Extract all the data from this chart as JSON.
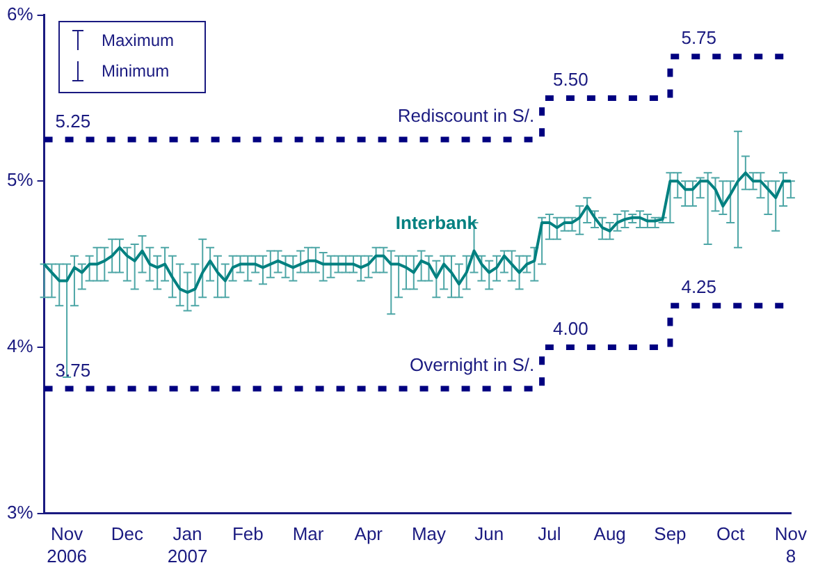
{
  "chart_data": {
    "type": "line",
    "categories": [
      null,
      null,
      null,
      "Nov\n2006",
      null,
      null,
      null,
      null,
      null,
      null,
      null,
      "Dec",
      null,
      null,
      null,
      null,
      null,
      null,
      null,
      "Jan\n2007",
      null,
      null,
      null,
      null,
      null,
      null,
      null,
      "Feb",
      null,
      null,
      null,
      null,
      null,
      null,
      null,
      "Mar",
      null,
      null,
      null,
      null,
      null,
      null,
      null,
      "Apr",
      null,
      null,
      null,
      null,
      null,
      null,
      null,
      "May",
      null,
      null,
      null,
      null,
      null,
      null,
      null,
      "Jun",
      null,
      null,
      null,
      null,
      null,
      null,
      null,
      "Jul",
      null,
      null,
      null,
      null,
      null,
      null,
      null,
      "Aug",
      null,
      null,
      null,
      null,
      null,
      null,
      null,
      "Sep",
      null,
      null,
      null,
      null,
      null,
      null,
      null,
      "Oct",
      null,
      null,
      null,
      null,
      null,
      null,
      null,
      "Nov\n8"
    ],
    "ylim": [
      3,
      6
    ],
    "yticks": [
      {
        "value": 3,
        "label": "3%"
      },
      {
        "value": 4,
        "label": "4%"
      },
      {
        "value": 5,
        "label": "5%"
      },
      {
        "value": 6,
        "label": "6%"
      }
    ],
    "grid": false,
    "legend": false,
    "marker": "none",
    "annotations": [
      "Maximum",
      "Minimum"
    ],
    "series": [
      {
        "name": "Rediscount in S/.",
        "type": "step",
        "line_style": "dotted",
        "color": "#000080",
        "values": [
          5.25,
          5.25,
          5.25,
          5.25,
          5.25,
          5.25,
          5.25,
          5.25,
          5.25,
          5.25,
          5.25,
          5.25,
          5.25,
          5.25,
          5.25,
          5.25,
          5.25,
          5.25,
          5.25,
          5.25,
          5.25,
          5.25,
          5.25,
          5.25,
          5.25,
          5.25,
          5.25,
          5.25,
          5.25,
          5.25,
          5.25,
          5.25,
          5.25,
          5.25,
          5.25,
          5.25,
          5.25,
          5.25,
          5.25,
          5.25,
          5.25,
          5.25,
          5.25,
          5.25,
          5.25,
          5.25,
          5.25,
          5.25,
          5.25,
          5.25,
          5.25,
          5.25,
          5.25,
          5.25,
          5.25,
          5.25,
          5.25,
          5.25,
          5.25,
          5.25,
          5.25,
          5.25,
          5.25,
          5.25,
          5.25,
          5.25,
          5.5,
          5.5,
          5.5,
          5.5,
          5.5,
          5.5,
          5.5,
          5.5,
          5.5,
          5.5,
          5.5,
          5.5,
          5.5,
          5.5,
          5.5,
          5.5,
          5.5,
          5.75,
          5.75,
          5.75,
          5.75,
          5.75,
          5.75,
          5.75,
          5.75,
          5.75,
          5.75,
          5.75,
          5.75,
          5.75,
          5.75,
          5.75,
          5.75,
          5.75
        ],
        "value_labels": [
          "5.25",
          null,
          null,
          null,
          null,
          null,
          null,
          null,
          null,
          null,
          null,
          null,
          null,
          null,
          null,
          null,
          null,
          null,
          null,
          null,
          null,
          null,
          null,
          null,
          null,
          null,
          null,
          null,
          null,
          null,
          null,
          null,
          null,
          null,
          null,
          null,
          null,
          null,
          null,
          null,
          null,
          null,
          null,
          null,
          null,
          null,
          null,
          null,
          null,
          null,
          null,
          null,
          null,
          null,
          null,
          null,
          null,
          null,
          null,
          null,
          null,
          null,
          null,
          null,
          null,
          null,
          "5.50",
          null,
          null,
          null,
          null,
          null,
          null,
          null,
          null,
          null,
          null,
          null,
          null,
          null,
          null,
          null,
          null,
          "5.75",
          null,
          null,
          null,
          null,
          null,
          null,
          null,
          null,
          null,
          null,
          null,
          null,
          null,
          null,
          null,
          null
        ]
      },
      {
        "name": "Interbank",
        "type": "line",
        "color": "#008080",
        "values": [
          4.5,
          4.45,
          4.4,
          4.4,
          4.48,
          4.45,
          4.5,
          4.5,
          4.52,
          4.55,
          4.6,
          4.55,
          4.52,
          4.58,
          4.5,
          4.48,
          4.5,
          4.42,
          4.35,
          4.33,
          4.35,
          4.45,
          4.52,
          4.45,
          4.4,
          4.48,
          4.5,
          4.5,
          4.5,
          4.48,
          4.5,
          4.52,
          4.5,
          4.48,
          4.5,
          4.52,
          4.52,
          4.5,
          4.5,
          4.5,
          4.5,
          4.5,
          4.48,
          4.5,
          4.55,
          4.55,
          4.5,
          4.5,
          4.48,
          4.45,
          4.52,
          4.5,
          4.42,
          4.5,
          4.45,
          4.38,
          4.45,
          4.58,
          4.5,
          4.45,
          4.48,
          4.55,
          4.5,
          4.45,
          4.5,
          4.52,
          4.75,
          4.75,
          4.72,
          4.75,
          4.75,
          4.78,
          4.85,
          4.78,
          4.72,
          4.7,
          4.75,
          4.77,
          4.78,
          4.78,
          4.76,
          4.76,
          4.77,
          5.0,
          5.0,
          4.95,
          4.95,
          5.0,
          5.0,
          4.95,
          4.85,
          4.92,
          5.0,
          5.05,
          5.0,
          5.0,
          4.95,
          4.9,
          5.0,
          5.0
        ],
        "errors": [
          [
            4.3,
            4.5
          ],
          [
            4.3,
            4.5
          ],
          [
            4.25,
            4.5
          ],
          [
            3.82,
            4.5
          ],
          [
            4.25,
            4.55
          ],
          [
            4.35,
            4.5
          ],
          [
            4.4,
            4.55
          ],
          [
            4.4,
            4.6
          ],
          [
            4.4,
            4.6
          ],
          [
            4.45,
            4.65
          ],
          [
            4.45,
            4.65
          ],
          [
            4.4,
            4.6
          ],
          [
            4.35,
            4.62
          ],
          [
            4.45,
            4.67
          ],
          [
            4.4,
            4.6
          ],
          [
            4.35,
            4.55
          ],
          [
            4.4,
            4.6
          ],
          [
            4.3,
            4.55
          ],
          [
            4.25,
            4.5
          ],
          [
            4.22,
            4.45
          ],
          [
            4.25,
            4.5
          ],
          [
            4.3,
            4.65
          ],
          [
            4.4,
            4.6
          ],
          [
            4.3,
            4.55
          ],
          [
            4.3,
            4.5
          ],
          [
            4.4,
            4.55
          ],
          [
            4.45,
            4.55
          ],
          [
            4.4,
            4.55
          ],
          [
            4.45,
            4.55
          ],
          [
            4.38,
            4.55
          ],
          [
            4.42,
            4.58
          ],
          [
            4.45,
            4.58
          ],
          [
            4.42,
            4.55
          ],
          [
            4.4,
            4.55
          ],
          [
            4.45,
            4.58
          ],
          [
            4.45,
            4.6
          ],
          [
            4.45,
            4.6
          ],
          [
            4.4,
            4.57
          ],
          [
            4.42,
            4.55
          ],
          [
            4.45,
            4.55
          ],
          [
            4.45,
            4.55
          ],
          [
            4.45,
            4.55
          ],
          [
            4.4,
            4.55
          ],
          [
            4.42,
            4.55
          ],
          [
            4.45,
            4.6
          ],
          [
            4.45,
            4.6
          ],
          [
            4.2,
            4.58
          ],
          [
            4.3,
            4.55
          ],
          [
            4.35,
            4.55
          ],
          [
            4.35,
            4.55
          ],
          [
            4.4,
            4.58
          ],
          [
            4.4,
            4.55
          ],
          [
            4.3,
            4.52
          ],
          [
            4.35,
            4.55
          ],
          [
            4.3,
            4.55
          ],
          [
            4.3,
            4.5
          ],
          [
            4.35,
            4.55
          ],
          [
            4.45,
            4.75
          ],
          [
            4.4,
            4.55
          ],
          [
            4.35,
            4.52
          ],
          [
            4.4,
            4.55
          ],
          [
            4.45,
            4.58
          ],
          [
            4.4,
            4.58
          ],
          [
            4.35,
            4.55
          ],
          [
            4.45,
            4.55
          ],
          [
            4.4,
            4.6
          ],
          [
            4.5,
            4.78
          ],
          [
            4.65,
            4.8
          ],
          [
            4.65,
            4.78
          ],
          [
            4.7,
            4.78
          ],
          [
            4.7,
            4.78
          ],
          [
            4.68,
            4.85
          ],
          [
            4.75,
            4.9
          ],
          [
            4.72,
            4.82
          ],
          [
            4.65,
            4.78
          ],
          [
            4.65,
            4.75
          ],
          [
            4.7,
            4.8
          ],
          [
            4.72,
            4.82
          ],
          [
            4.75,
            4.8
          ],
          [
            4.72,
            4.82
          ],
          [
            4.72,
            4.8
          ],
          [
            4.72,
            4.78
          ],
          [
            4.75,
            4.78
          ],
          [
            4.75,
            5.05
          ],
          [
            4.9,
            5.05
          ],
          [
            4.85,
            5.0
          ],
          [
            4.85,
            5.0
          ],
          [
            4.9,
            5.02
          ],
          [
            4.62,
            5.05
          ],
          [
            4.82,
            5.02
          ],
          [
            4.8,
            5.0
          ],
          [
            4.75,
            5.0
          ],
          [
            4.6,
            5.3
          ],
          [
            4.95,
            5.15
          ],
          [
            4.95,
            5.05
          ],
          [
            4.9,
            5.05
          ],
          [
            4.8,
            5.0
          ],
          [
            4.7,
            5.0
          ],
          [
            4.85,
            5.05
          ],
          [
            4.9,
            5.0
          ]
        ]
      },
      {
        "name": "Overnight in S/.",
        "type": "step",
        "line_style": "dotted",
        "color": "#000080",
        "values": [
          3.75,
          3.75,
          3.75,
          3.75,
          3.75,
          3.75,
          3.75,
          3.75,
          3.75,
          3.75,
          3.75,
          3.75,
          3.75,
          3.75,
          3.75,
          3.75,
          3.75,
          3.75,
          3.75,
          3.75,
          3.75,
          3.75,
          3.75,
          3.75,
          3.75,
          3.75,
          3.75,
          3.75,
          3.75,
          3.75,
          3.75,
          3.75,
          3.75,
          3.75,
          3.75,
          3.75,
          3.75,
          3.75,
          3.75,
          3.75,
          3.75,
          3.75,
          3.75,
          3.75,
          3.75,
          3.75,
          3.75,
          3.75,
          3.75,
          3.75,
          3.75,
          3.75,
          3.75,
          3.75,
          3.75,
          3.75,
          3.75,
          3.75,
          3.75,
          3.75,
          3.75,
          3.75,
          3.75,
          3.75,
          3.75,
          3.75,
          4.0,
          4.0,
          4.0,
          4.0,
          4.0,
          4.0,
          4.0,
          4.0,
          4.0,
          4.0,
          4.0,
          4.0,
          4.0,
          4.0,
          4.0,
          4.0,
          4.0,
          4.25,
          4.25,
          4.25,
          4.25,
          4.25,
          4.25,
          4.25,
          4.25,
          4.25,
          4.25,
          4.25,
          4.25,
          4.25,
          4.25,
          4.25,
          4.25,
          4.25
        ],
        "value_labels": [
          "3.75",
          null,
          null,
          null,
          null,
          null,
          null,
          null,
          null,
          null,
          null,
          null,
          null,
          null,
          null,
          null,
          null,
          null,
          null,
          null,
          null,
          null,
          null,
          null,
          null,
          null,
          null,
          null,
          null,
          null,
          null,
          null,
          null,
          null,
          null,
          null,
          null,
          null,
          null,
          null,
          null,
          null,
          null,
          null,
          null,
          null,
          null,
          null,
          null,
          null,
          null,
          null,
          null,
          null,
          null,
          null,
          null,
          null,
          null,
          null,
          null,
          null,
          null,
          null,
          null,
          null,
          "4.00",
          null,
          null,
          null,
          null,
          null,
          null,
          null,
          null,
          null,
          null,
          null,
          null,
          null,
          null,
          null,
          null,
          "4.25",
          null,
          null,
          null,
          null,
          null,
          null,
          null,
          null,
          null,
          null,
          null,
          null,
          null,
          null,
          null,
          null
        ]
      }
    ]
  }
}
